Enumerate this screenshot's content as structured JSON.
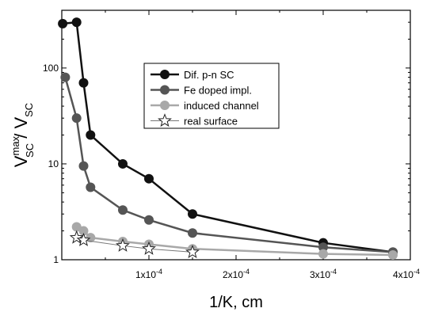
{
  "chart_data": {
    "type": "line",
    "xlabel": "1/K, cm",
    "ylabel": {
      "main": "V",
      "main_sup": "max",
      "main_sub": "SC",
      "sep": " / ",
      "denom": "V",
      "denom_sub": "SC"
    },
    "xlim": [
      0.0,
      0.0004
    ],
    "ylim": [
      1,
      400
    ],
    "y_scale": "log",
    "grid": false,
    "legend_position": "center-right",
    "x_ticks": [
      {
        "value": 0.0001,
        "mant": "1x10",
        "exp": "-4"
      },
      {
        "value": 0.0002,
        "mant": "2x10",
        "exp": "-4"
      },
      {
        "value": 0.0003,
        "mant": "3x10",
        "exp": "-4"
      },
      {
        "value": 0.0004,
        "mant": "4x10",
        "exp": "-4"
      }
    ],
    "y_ticks": [
      {
        "value": 1,
        "label": "1"
      },
      {
        "value": 10,
        "label": "10"
      },
      {
        "value": 100,
        "label": "100"
      }
    ],
    "series": [
      {
        "name": "Dif. p-n SC",
        "color": "#111111",
        "marker": "circle-filled",
        "line_width": 2.5,
        "x": [
          1e-06,
          1.7e-05,
          2.5e-05,
          3.3e-05,
          7e-05,
          0.0001,
          0.00015,
          0.0003,
          0.00038
        ],
        "y": [
          290,
          300,
          70,
          20,
          10,
          7,
          3,
          1.5,
          1.2
        ]
      },
      {
        "name": "Fe doped impl.",
        "color": "#555555",
        "marker": "circle-filled",
        "line_width": 2.5,
        "x": [
          4e-06,
          1.7e-05,
          2.5e-05,
          3.3e-05,
          7e-05,
          0.0001,
          0.00015,
          0.0003,
          0.00038
        ],
        "y": [
          80,
          30,
          9.5,
          5.7,
          3.3,
          2.6,
          1.9,
          1.35,
          1.2
        ]
      },
      {
        "name": "induced channel",
        "color": "#a8a8a8",
        "marker": "circle-filled",
        "line_width": 2.5,
        "x": [
          1.7e-05,
          2.5e-05,
          3.3e-05,
          7e-05,
          0.0001,
          0.00015,
          0.0003,
          0.00038
        ],
        "y": [
          2.2,
          2.0,
          1.7,
          1.55,
          1.45,
          1.3,
          1.15,
          1.12
        ]
      },
      {
        "name": "real surface",
        "color": "#777777",
        "marker": "star-open",
        "line_width": 1,
        "x": [
          1.7e-05,
          2.5e-05,
          7e-05,
          0.0001,
          0.00015
        ],
        "y": [
          1.7,
          1.6,
          1.4,
          1.3,
          1.2
        ]
      }
    ]
  }
}
